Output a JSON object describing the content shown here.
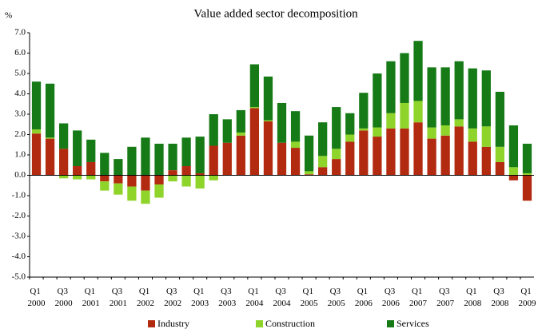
{
  "chart_data": {
    "type": "stacked_bar",
    "title": "Value added sector decomposition",
    "y_axis_label": "%",
    "categories": [
      "Q1 2000",
      null,
      "Q3 2000",
      null,
      "Q1 2001",
      null,
      "Q3 2001",
      null,
      "Q1 2002",
      null,
      "Q3 2002",
      null,
      "Q1 2003",
      null,
      "Q3 2003",
      null,
      "Q1 2004",
      null,
      "Q3 2004",
      null,
      "Q1 2005",
      null,
      "Q3 2005",
      null,
      "Q1 2006",
      null,
      "Q3 2006",
      null,
      "Q1 2007",
      null,
      "Q3 2007",
      null,
      "Q1 2008",
      null,
      "Q3 2008",
      null,
      "Q1 2009"
    ],
    "series": [
      {
        "name": "Industry",
        "color": "#b22a10",
        "values": [
          2.05,
          1.8,
          1.3,
          0.45,
          0.65,
          -0.3,
          -0.4,
          -0.55,
          -0.75,
          -0.45,
          0.25,
          0.45,
          0.1,
          1.45,
          1.6,
          1.95,
          3.3,
          2.65,
          1.6,
          1.35,
          0.05,
          0.4,
          0.8,
          1.65,
          2.2,
          1.9,
          2.3,
          2.3,
          2.6,
          1.8,
          1.95,
          2.4,
          1.65,
          1.4,
          0.65,
          -0.25,
          -1.25
        ]
      },
      {
        "name": "Construction",
        "color": "#8fd42a",
        "values": [
          0.2,
          0.05,
          -0.15,
          -0.2,
          -0.2,
          -0.45,
          -0.55,
          -0.7,
          -0.65,
          -0.65,
          -0.3,
          -0.55,
          -0.65,
          -0.25,
          0,
          0.15,
          0.05,
          0.05,
          0,
          0.3,
          0.15,
          0.55,
          0.5,
          0.35,
          0.1,
          0.45,
          0.75,
          1.25,
          1.05,
          0.55,
          0.5,
          0.35,
          0.65,
          1.0,
          0.75,
          0.4,
          0.1
        ]
      },
      {
        "name": "Services",
        "color": "#167a16",
        "values": [
          2.35,
          2.65,
          1.25,
          1.75,
          1.1,
          1.1,
          0.8,
          1.4,
          1.85,
          1.55,
          1.3,
          1.4,
          1.8,
          1.55,
          1.15,
          1.1,
          2.1,
          2.15,
          1.95,
          1.5,
          1.75,
          1.65,
          2.05,
          1.05,
          1.75,
          2.65,
          2.55,
          2.45,
          2.95,
          2.95,
          2.85,
          2.85,
          2.95,
          2.75,
          2.7,
          2.05,
          1.45
        ]
      }
    ],
    "ylim": [
      -5,
      7
    ],
    "yticks": [
      {
        "value": -5,
        "label": "-5.0"
      },
      {
        "value": -4,
        "label": "-4.0"
      },
      {
        "value": -3,
        "label": "-3.0"
      },
      {
        "value": -2,
        "label": "-2.0"
      },
      {
        "value": -1,
        "label": "-1.0"
      },
      {
        "value": 0,
        "label": "0.0"
      },
      {
        "value": 1,
        "label": "1.0"
      },
      {
        "value": 2,
        "label": "2.0"
      },
      {
        "value": 3,
        "label": "3.0"
      },
      {
        "value": 4,
        "label": "4.0"
      },
      {
        "value": 5,
        "label": "5.0"
      },
      {
        "value": 6,
        "label": "6.0"
      },
      {
        "value": 7,
        "label": "7.0"
      }
    ],
    "legend": "bottom"
  }
}
